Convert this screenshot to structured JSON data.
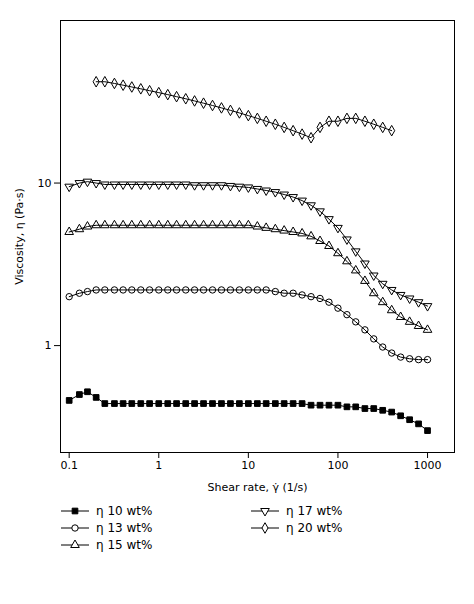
{
  "chart_data": {
    "type": "line",
    "xlabel": "Shear rate, γ̇ (1/s)",
    "ylabel": "Viscosity, η (Pa·s)",
    "log": true,
    "xlim": [
      0.08,
      2000
    ],
    "ylim": [
      0.22,
      100
    ],
    "xticks": [
      0.1,
      1,
      10,
      100,
      1000
    ],
    "yticks": [
      1,
      10
    ],
    "grid": false,
    "legend": "bottom",
    "series": [
      {
        "name": "η 10 wt%",
        "color": "black",
        "marker": "square",
        "x": [
          0.1,
          0.13,
          0.16,
          0.2,
          0.25,
          0.32,
          0.4,
          0.5,
          0.63,
          0.79,
          1.0,
          1.26,
          1.58,
          2.0,
          2.51,
          3.16,
          3.98,
          5.01,
          6.31,
          7.94,
          10.0,
          12.6,
          15.8,
          20.0,
          25.1,
          31.6,
          39.8,
          50.1,
          63.1,
          79.4,
          100,
          126,
          158,
          200,
          251,
          316,
          398,
          501,
          631,
          794,
          1000
        ],
        "values": [
          0.46,
          0.5,
          0.52,
          0.48,
          0.44,
          0.44,
          0.44,
          0.44,
          0.44,
          0.44,
          0.44,
          0.44,
          0.44,
          0.44,
          0.44,
          0.44,
          0.44,
          0.44,
          0.44,
          0.44,
          0.44,
          0.44,
          0.44,
          0.44,
          0.44,
          0.44,
          0.44,
          0.43,
          0.43,
          0.43,
          0.43,
          0.42,
          0.42,
          0.41,
          0.41,
          0.4,
          0.39,
          0.37,
          0.35,
          0.33,
          0.3
        ]
      },
      {
        "name": "η 13 wt%",
        "color": "black",
        "marker": "circle-open",
        "x": [
          0.1,
          0.13,
          0.16,
          0.2,
          0.25,
          0.32,
          0.4,
          0.5,
          0.63,
          0.79,
          1.0,
          1.26,
          1.58,
          2.0,
          2.51,
          3.16,
          3.98,
          5.01,
          6.31,
          7.94,
          10.0,
          12.6,
          15.8,
          20.0,
          25.1,
          31.6,
          39.8,
          50.1,
          63.1,
          79.4,
          100,
          126,
          158,
          200,
          251,
          316,
          398,
          501,
          631,
          794,
          1000
        ],
        "values": [
          2.0,
          2.1,
          2.15,
          2.2,
          2.2,
          2.2,
          2.2,
          2.2,
          2.2,
          2.2,
          2.2,
          2.2,
          2.2,
          2.2,
          2.2,
          2.2,
          2.2,
          2.2,
          2.2,
          2.2,
          2.2,
          2.2,
          2.2,
          2.15,
          2.1,
          2.1,
          2.05,
          2.0,
          1.95,
          1.85,
          1.7,
          1.55,
          1.4,
          1.25,
          1.1,
          0.98,
          0.9,
          0.85,
          0.83,
          0.82,
          0.82
        ]
      },
      {
        "name": "η 15 wt%",
        "color": "black",
        "marker": "triangle-up-open",
        "x": [
          0.1,
          0.13,
          0.16,
          0.2,
          0.25,
          0.32,
          0.4,
          0.5,
          0.63,
          0.79,
          1.0,
          1.26,
          1.58,
          2.0,
          2.51,
          3.16,
          3.98,
          5.01,
          6.31,
          7.94,
          10.0,
          12.6,
          15.8,
          20.0,
          25.1,
          31.6,
          39.8,
          50.1,
          63.1,
          79.4,
          100,
          126,
          158,
          200,
          251,
          316,
          398,
          501,
          631,
          794,
          1000
        ],
        "values": [
          5.0,
          5.2,
          5.4,
          5.5,
          5.5,
          5.5,
          5.5,
          5.5,
          5.5,
          5.5,
          5.5,
          5.5,
          5.5,
          5.5,
          5.5,
          5.5,
          5.5,
          5.5,
          5.5,
          5.5,
          5.5,
          5.4,
          5.3,
          5.2,
          5.1,
          5.0,
          4.9,
          4.7,
          4.4,
          4.1,
          3.7,
          3.3,
          2.9,
          2.5,
          2.1,
          1.85,
          1.65,
          1.5,
          1.4,
          1.32,
          1.25
        ]
      },
      {
        "name": "η 17 wt%",
        "color": "black",
        "marker": "triangle-down-open",
        "x": [
          0.1,
          0.13,
          0.16,
          0.2,
          0.25,
          0.32,
          0.4,
          0.5,
          0.63,
          0.79,
          1.0,
          1.26,
          1.58,
          2.0,
          2.51,
          3.16,
          3.98,
          5.01,
          6.31,
          7.94,
          10.0,
          12.6,
          15.8,
          20.0,
          25.1,
          31.6,
          39.8,
          50.1,
          63.1,
          79.4,
          100,
          126,
          158,
          200,
          251,
          316,
          398,
          501,
          631,
          794,
          1000
        ],
        "values": [
          9.5,
          10.0,
          10.2,
          10.0,
          9.8,
          9.8,
          9.8,
          9.8,
          9.8,
          9.8,
          9.8,
          9.8,
          9.8,
          9.8,
          9.7,
          9.7,
          9.7,
          9.7,
          9.6,
          9.5,
          9.4,
          9.2,
          9.0,
          8.8,
          8.5,
          8.2,
          7.8,
          7.3,
          6.7,
          6.0,
          5.3,
          4.5,
          3.8,
          3.2,
          2.7,
          2.4,
          2.2,
          2.05,
          1.95,
          1.85,
          1.75
        ]
      },
      {
        "name": "η 20 wt%",
        "color": "black",
        "marker": "diamond-open",
        "x": [
          0.2,
          0.25,
          0.32,
          0.4,
          0.5,
          0.63,
          0.79,
          1.0,
          1.26,
          1.58,
          2.0,
          2.51,
          3.16,
          3.98,
          5.01,
          6.31,
          7.94,
          10.0,
          12.6,
          15.8,
          20.0,
          25.1,
          31.6,
          39.8,
          50.1,
          63.1,
          79.4,
          100,
          126,
          158,
          200,
          251,
          316,
          398
        ],
        "values": [
          42,
          42,
          41,
          40,
          39,
          38,
          37,
          36,
          35,
          34,
          33,
          32,
          31,
          30,
          29,
          28,
          27,
          26,
          25,
          24,
          23,
          22,
          21,
          20,
          19,
          22,
          24,
          24,
          25,
          25,
          24,
          23,
          22,
          21
        ]
      }
    ]
  }
}
